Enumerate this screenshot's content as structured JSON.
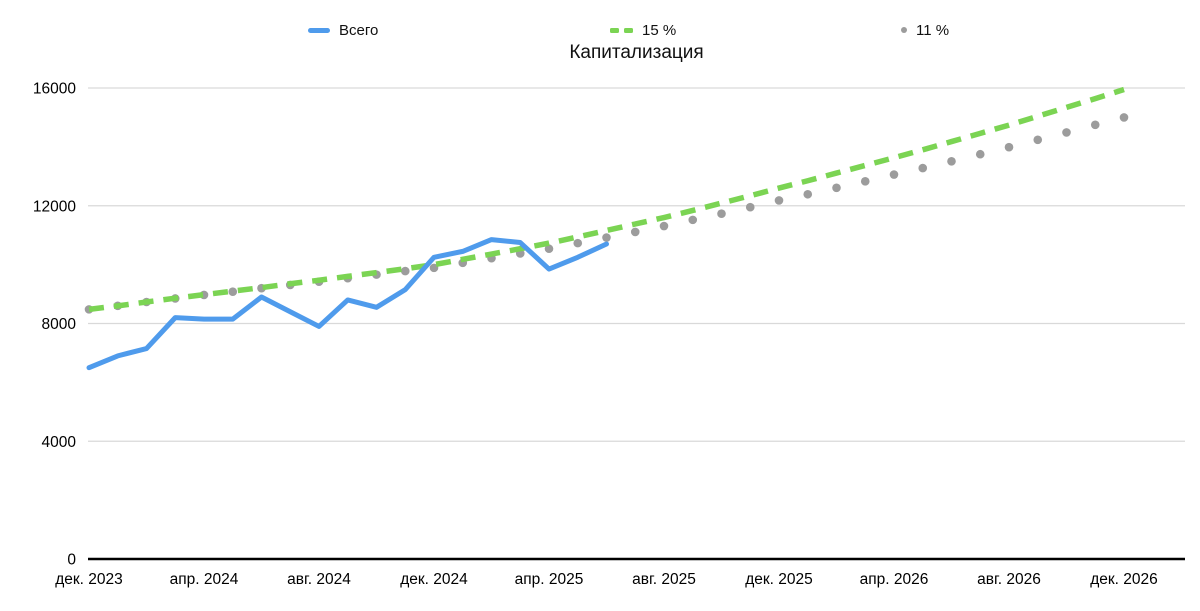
{
  "title": "Капитализация",
  "legend": {
    "items": [
      {
        "label": "Всего",
        "swatch": "solid-line-swatch",
        "color": "#4f9bec"
      },
      {
        "label": "15 %",
        "swatch": "dashed-line-swatch",
        "color": "#7bd453"
      },
      {
        "label": "11 %",
        "swatch": "dot-swatch",
        "color": "#9c9c9c"
      }
    ]
  },
  "chart_data": {
    "type": "line",
    "title": "Капитализация",
    "xlabel": "",
    "ylabel": "",
    "x_tick_labels": [
      "дек. 2023",
      "апр. 2024",
      "авг. 2024",
      "дек. 2024",
      "апр. 2025",
      "авг. 2025",
      "дек. 2025",
      "апр. 2026",
      "авг. 2026",
      "дек. 2026"
    ],
    "x_tick_month_indices": [
      0,
      4,
      8,
      12,
      16,
      20,
      24,
      28,
      32,
      36
    ],
    "months_total": 37,
    "x_range_note": "monthly points from дек. 2023 to дек. 2026",
    "ylim": [
      0,
      16000
    ],
    "yticks": [
      0,
      4000,
      8000,
      12000,
      16000
    ],
    "grid": "horizontal-only",
    "legend_position": "top",
    "background": "#ffffff",
    "grid_color": "#d9d9d9",
    "axis_color": "#000000",
    "series": [
      {
        "name": "Всего",
        "style": "solid",
        "color": "#4f9bec",
        "start_month": 0,
        "values": [
          6500,
          6900,
          7150,
          8200,
          8150,
          8150,
          8900,
          8400,
          7900,
          8800,
          8550,
          9150,
          10250,
          10450,
          10850,
          10750,
          9850,
          10250,
          10700
        ]
      },
      {
        "name": "15 %",
        "style": "dashed",
        "color": "#7bd453",
        "start_month": 0,
        "values": [
          8480,
          8600,
          8730,
          8860,
          8980,
          9100,
          9220,
          9350,
          9470,
          9600,
          9730,
          9860,
          10000,
          10180,
          10360,
          10540,
          10730,
          10940,
          11160,
          11380,
          11600,
          11840,
          12090,
          12340,
          12600,
          12850,
          13110,
          13370,
          13630,
          13900,
          14180,
          14460,
          14740,
          15040,
          15340,
          15640,
          15950
        ]
      },
      {
        "name": "11 %",
        "style": "dotted",
        "color": "#9c9c9c",
        "start_month": 0,
        "values": [
          8480,
          8600,
          8730,
          8850,
          8970,
          9080,
          9200,
          9310,
          9420,
          9540,
          9660,
          9780,
          9890,
          10060,
          10220,
          10380,
          10540,
          10730,
          10920,
          11110,
          11310,
          11520,
          11730,
          11950,
          12180,
          12390,
          12610,
          12830,
          13060,
          13280,
          13510,
          13750,
          13990,
          14240,
          14490,
          14750,
          15000
        ]
      }
    ]
  }
}
